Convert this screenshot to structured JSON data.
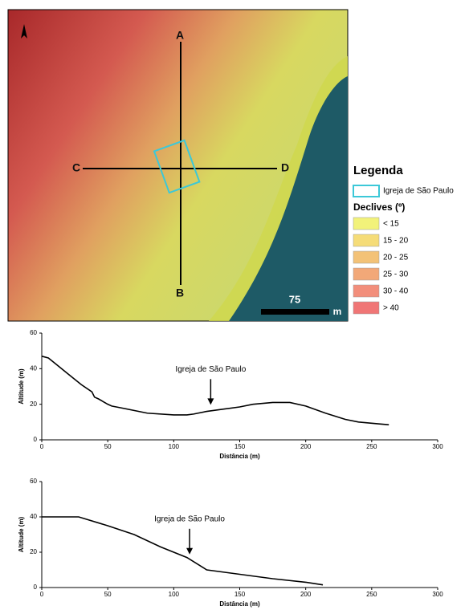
{
  "map": {
    "north": "A",
    "labels": {
      "a": "A",
      "b": "B",
      "c": "C",
      "d": "D"
    },
    "scale": {
      "value": "75",
      "unit": "m"
    },
    "legend": {
      "title": "Legenda",
      "church": "Igreja de São Paulo",
      "slope_title": "Declives (º)",
      "classes": [
        {
          "label": "< 15",
          "color": "#f2f27a"
        },
        {
          "label": "15 - 20",
          "color": "#f5dc78"
        },
        {
          "label": "20 - 25",
          "color": "#f3c277"
        },
        {
          "label": "25 - 30",
          "color": "#f2a878"
        },
        {
          "label": "30 - 40",
          "color": "#f28e7b"
        },
        {
          "label": "> 40",
          "color": "#f07676"
        }
      ]
    }
  },
  "chart_data": [
    {
      "type": "line",
      "xlabel": "Distância (m)",
      "ylabel": "Altitude (m)",
      "color": "#000000",
      "x": [
        0,
        5,
        10,
        20,
        30,
        38,
        40,
        43,
        50,
        53,
        60,
        80,
        100,
        110,
        115,
        125,
        135,
        150,
        160,
        175,
        188,
        200,
        215,
        230,
        240,
        255,
        263
      ],
      "values": [
        47,
        46,
        43,
        37,
        31,
        27,
        24,
        23,
        20,
        19,
        18,
        15,
        14,
        14,
        14.5,
        16,
        17,
        18.5,
        20,
        21,
        21,
        19,
        15,
        11.5,
        10,
        9,
        8.5
      ],
      "xlim": [
        0,
        300
      ],
      "xticks": [
        0,
        50,
        100,
        150,
        200,
        250,
        300
      ],
      "ylim": [
        0,
        60
      ],
      "yticks": [
        0,
        20,
        40,
        60
      ],
      "annotations": [
        {
          "text": "Igreja de São Paulo",
          "x": 128,
          "y": 17
        }
      ]
    },
    {
      "type": "line",
      "xlabel": "Distância (m)",
      "ylabel": "Altitude (m)",
      "color": "#000000",
      "x": [
        0,
        28,
        50,
        70,
        90,
        110,
        125,
        150,
        175,
        200,
        213
      ],
      "values": [
        40,
        40,
        35,
        30,
        23,
        17,
        10,
        7.5,
        5,
        3,
        1.5
      ],
      "xlim": [
        0,
        300
      ],
      "xticks": [
        0,
        50,
        100,
        150,
        200,
        250,
        300
      ],
      "ylim": [
        0,
        60
      ],
      "yticks": [
        0,
        20,
        40,
        60
      ],
      "annotations": [
        {
          "text": "Igreja de São Paulo",
          "x": 112,
          "y": 16
        }
      ]
    }
  ]
}
